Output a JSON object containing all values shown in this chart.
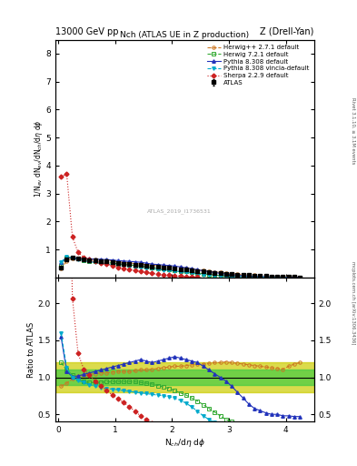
{
  "title_top": "13000 GeV pp",
  "title_right": "Z (Drell-Yan)",
  "plot_title": "Nch (ATLAS UE in Z production)",
  "xlabel": "N$_{ch}$/d$\\eta$ d$\\phi$",
  "ylabel_main": "1/N$_{ev}$ dN$_{ev}$/dN$_{ch}$/d$\\eta$ d$\\phi$",
  "ylabel_ratio": "Ratio to ATLAS",
  "right_label_top": "Rivet 3.1.10, ≥ 3.1M events",
  "right_label_bottom": "mcplots.cern.ch [arXiv:1306.3436]",
  "watermark": "ATLAS_2019_I1736531",
  "ylim_main": [
    0,
    8.5
  ],
  "ylim_ratio": [
    0.4,
    2.35
  ],
  "xlim": [
    -0.05,
    4.5
  ],
  "yticks_main": [
    1,
    2,
    3,
    4,
    5,
    6,
    7,
    8
  ],
  "yticks_ratio": [
    0.5,
    1.0,
    1.5,
    2.0
  ],
  "color_atlas": "#000000",
  "color_herwig271": "#cc7722",
  "color_herwig721": "#33aa33",
  "color_pythia308": "#2233bb",
  "color_pythia308v": "#00aacc",
  "color_sherpa": "#cc2222",
  "color_band_green": "#44cc44",
  "color_band_yellow": "#cccc00"
}
